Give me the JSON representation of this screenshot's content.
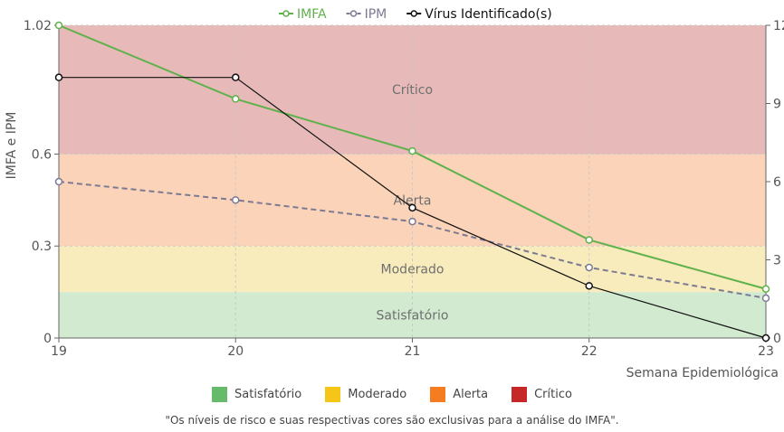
{
  "chart_data": {
    "type": "line",
    "x": [
      19,
      20,
      21,
      22,
      23
    ],
    "xlabel": "Semana Epidemiológica",
    "ylabel": "IMFA e IPM",
    "ylim": [
      0,
      1.02
    ],
    "y_ticks": [
      "0",
      "0.3",
      "0.6",
      "1.02"
    ],
    "y2lim": [
      0,
      12
    ],
    "y2_ticks": [
      "0",
      "3",
      "6",
      "9",
      "12"
    ],
    "x_ticks": [
      "19",
      "20",
      "21",
      "22",
      "23"
    ],
    "grid": true,
    "legend_position": "top",
    "series": [
      {
        "name": "IMFA",
        "axis": "left",
        "style": "solid",
        "color": "#5fb14b",
        "values": [
          1.02,
          0.78,
          0.61,
          0.32,
          0.16
        ]
      },
      {
        "name": "IPM",
        "axis": "left",
        "style": "dashed",
        "color": "#7c7a93",
        "values": [
          0.51,
          0.45,
          0.38,
          0.23,
          0.13
        ]
      },
      {
        "name": "Vírus Identificado(s)",
        "axis": "right",
        "style": "solid",
        "color": "#111111",
        "values": [
          10,
          10,
          5,
          2,
          0
        ]
      }
    ],
    "bands": [
      {
        "label": "Satisfatório",
        "from": 0,
        "to": 0.15,
        "color": "#d2ead0"
      },
      {
        "label": "Moderado",
        "from": 0.15,
        "to": 0.3,
        "color": "#f9ecbc"
      },
      {
        "label": "Alerta",
        "from": 0.3,
        "to": 0.6,
        "color": "#fbd3b8"
      },
      {
        "label": "Crítico",
        "from": 0.6,
        "to": 1.02,
        "color": "#e8b9b9"
      }
    ],
    "risk_legend": [
      {
        "label": "Satisfatório",
        "color": "#66bb6a"
      },
      {
        "label": "Moderado",
        "color": "#f5c518"
      },
      {
        "label": "Alerta",
        "color": "#f57c1f"
      },
      {
        "label": "Crítico",
        "color": "#c62828"
      }
    ]
  },
  "footnote": "\"Os níveis de risco e suas respectivas cores são exclusivas para a análise do IMFA\"."
}
